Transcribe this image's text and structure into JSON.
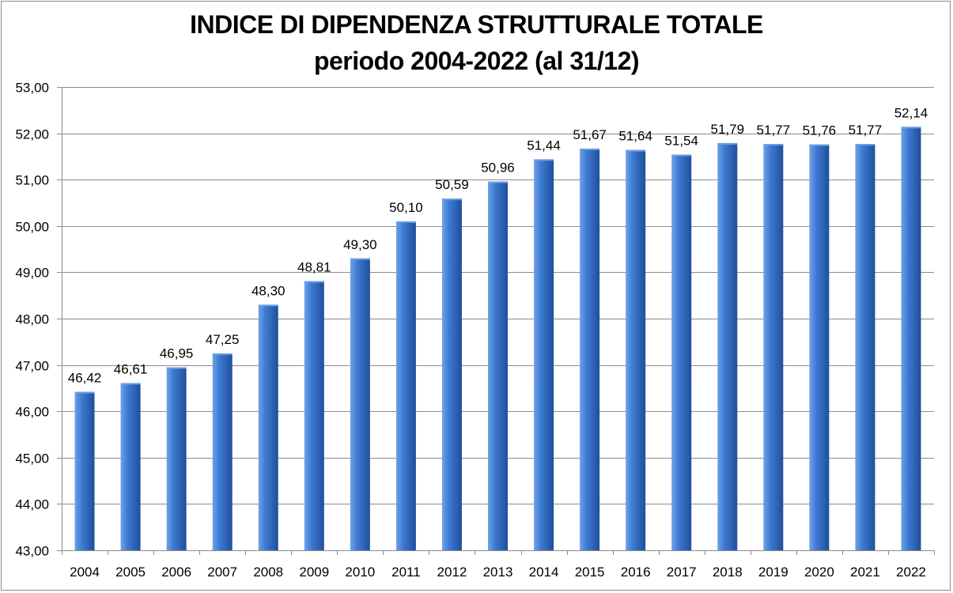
{
  "chart_data": {
    "type": "bar",
    "title": "INDICE DI DIPENDENZA STRUTTURALE TOTALE",
    "subtitle": "periodo 2004-2022 (al 31/12)",
    "xlabel": "",
    "ylabel": "",
    "ylim": [
      43,
      53
    ],
    "ytick_step": 1,
    "grid": true,
    "legend": "none",
    "categories": [
      "2004",
      "2005",
      "2006",
      "2007",
      "2008",
      "2009",
      "2010",
      "2011",
      "2012",
      "2013",
      "2014",
      "2015",
      "2016",
      "2017",
      "2018",
      "2019",
      "2020",
      "2021",
      "2022"
    ],
    "values": [
      46.42,
      46.61,
      46.95,
      47.25,
      48.3,
      48.81,
      49.3,
      50.1,
      50.59,
      50.96,
      51.44,
      51.67,
      51.64,
      51.54,
      51.79,
      51.77,
      51.76,
      51.77,
      52.14
    ],
    "value_labels": [
      "46,42",
      "46,61",
      "46,95",
      "47,25",
      "48,30",
      "48,81",
      "49,30",
      "50,10",
      "50,59",
      "50,96",
      "51,44",
      "51,67",
      "51,64",
      "51,54",
      "51,79",
      "51,77",
      "51,76",
      "51,77",
      "52,14"
    ],
    "ytick_labels": [
      "43,00",
      "44,00",
      "45,00",
      "46,00",
      "47,00",
      "48,00",
      "49,00",
      "50,00",
      "51,00",
      "52,00",
      "53,00"
    ],
    "colors": {
      "bar_light": "#6fa3e6",
      "bar_mid": "#3d7ad3",
      "bar_dark": "#1f4f9a",
      "grid": "#8c8c8c",
      "axis": "#8c8c8c"
    }
  }
}
